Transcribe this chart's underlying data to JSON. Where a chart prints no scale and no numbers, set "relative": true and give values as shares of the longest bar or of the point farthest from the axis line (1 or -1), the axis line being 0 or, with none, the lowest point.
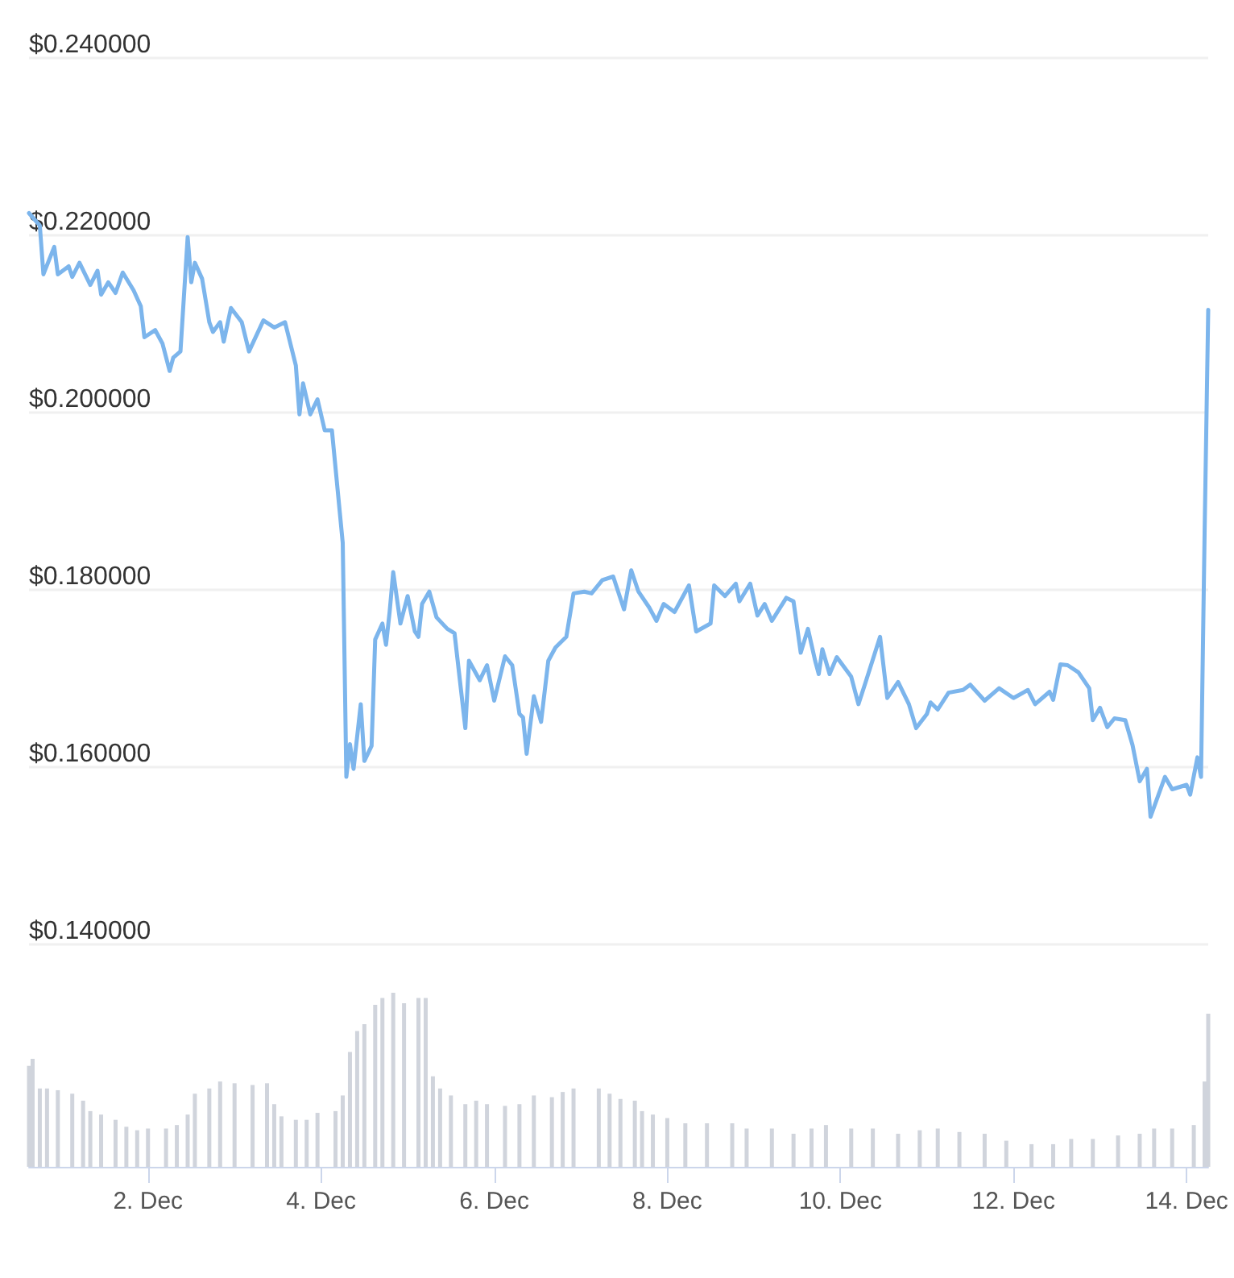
{
  "chart_data": [
    {
      "type": "line",
      "tick_labels": "y",
      "grid": "y",
      "marker": "none",
      "line_style": "solid",
      "xlim": [
        "--11-30T15:00",
        "--12-14T06:00"
      ],
      "xticks": [
        {
          "value": "--12-02",
          "label": null
        },
        {
          "value": "--12-04",
          "label": null
        },
        {
          "value": "--12-06",
          "label": null
        },
        {
          "value": "--12-08",
          "label": null
        },
        {
          "value": "--12-10",
          "label": null
        },
        {
          "value": "--12-12",
          "label": null
        },
        {
          "value": "--12-14",
          "label": null
        }
      ],
      "ylim": [
        0.14,
        0.24
      ],
      "yticks": [
        {
          "value": 0.14,
          "label": "$0.140000"
        },
        {
          "value": 0.16,
          "label": "$0.160000"
        },
        {
          "value": 0.18,
          "label": "$0.180000"
        },
        {
          "value": 0.2,
          "label": "$0.200000"
        },
        {
          "value": 0.22,
          "label": "$0.220000"
        },
        {
          "value": 0.24,
          "label": "$0.240000"
        }
      ],
      "x": [
        "--11-30T15:00",
        "--11-30T18:00",
        "--11-30T19:00",
        "--11-30T22:00",
        "--11-30T23:00",
        "--12-01T02:00",
        "--12-01T03:00",
        "--12-01T05:00",
        "--12-01T08:00",
        "--12-01T10:00",
        "--12-01T11:00",
        "--12-01T13:00",
        "--12-01T15:00",
        "--12-01T17:00",
        "--12-01T20:00",
        "--12-01T22:00",
        "--12-01T23:00",
        "--12-02T02:00",
        "--12-02T04:00",
        "--12-02T06:00",
        "--12-02T07:00",
        "--12-02T09:00",
        "--12-02T11:00",
        "--12-02T12:00",
        "--12-02T13:00",
        "--12-02T15:00",
        "--12-02T17:00",
        "--12-02T18:00",
        "--12-02T20:00",
        "--12-02T21:00",
        "--12-02T23:00",
        "--12-03T02:00",
        "--12-03T04:00",
        "--12-03T08:00",
        "--12-03T11:00",
        "--12-03T14:00",
        "--12-03T17:00",
        "--12-03T18:00",
        "--12-03T19:00",
        "--12-03T21:00",
        "--12-03T23:00",
        "--12-04T01:00",
        "--12-04T03:00",
        "--12-04T06:00",
        "--12-04T07:00",
        "--12-04T08:00",
        "--12-04T09:00",
        "--12-04T11:00",
        "--12-04T12:00",
        "--12-04T14:00",
        "--12-04T15:00",
        "--12-04T17:00",
        "--12-04T18:00",
        "--12-04T19:00",
        "--12-04T20:00",
        "--12-04T22:00",
        "--12-05T00:00",
        "--12-05T02:00",
        "--12-05T03:00",
        "--12-05T04:00",
        "--12-05T06:00",
        "--12-05T08:00",
        "--12-05T11:00",
        "--12-05T13:00",
        "--12-05T16:00",
        "--12-05T17:00",
        "--12-05T20:00",
        "--12-05T22:00",
        "--12-06T00:00",
        "--12-06T03:00",
        "--12-06T05:00",
        "--12-06T07:00",
        "--12-06T08:00",
        "--12-06T09:00",
        "--12-06T11:00",
        "--12-06T13:00",
        "--12-06T15:00",
        "--12-06T17:00",
        "--12-06T20:00",
        "--12-06T22:00",
        "--12-07T01:00",
        "--12-07T03:00",
        "--12-07T06:00",
        "--12-07T09:00",
        "--12-07T12:00",
        "--12-07T14:00",
        "--12-07T16:00",
        "--12-07T19:00",
        "--12-07T21:00",
        "--12-07T23:00",
        "--12-08T02:00",
        "--12-08T06:00",
        "--12-08T08:00",
        "--12-08T12:00",
        "--12-08T13:00",
        "--12-08T16:00",
        "--12-08T19:00",
        "--12-08T20:00",
        "--12-08T23:00",
        "--12-09T01:00",
        "--12-09T03:00",
        "--12-09T05:00",
        "--12-09T09:00",
        "--12-09T11:00",
        "--12-09T13:00",
        "--12-09T15:00",
        "--12-09T17:00",
        "--12-09T18:00",
        "--12-09T19:00",
        "--12-09T21:00",
        "--12-09T23:00",
        "--12-10T03:00",
        "--12-10T05:00",
        "--12-10T07:00",
        "--12-10T11:00",
        "--12-10T13:00",
        "--12-10T16:00",
        "--12-10T19:00",
        "--12-10T21:00",
        "--12-11T00:00",
        "--12-11T01:00",
        "--12-11T03:00",
        "--12-11T06:00",
        "--12-11T10:00",
        "--12-11T12:00",
        "--12-11T16:00",
        "--12-11T20:00",
        "--12-12T00:00",
        "--12-12T04:00",
        "--12-12T06:00",
        "--12-12T10:00",
        "--12-12T11:00",
        "--12-12T13:00",
        "--12-12T15:00",
        "--12-12T18:00",
        "--12-12T21:00",
        "--12-12T22:00",
        "--12-13T00:00",
        "--12-13T02:00",
        "--12-13T04:00",
        "--12-13T07:00",
        "--12-13T09:00",
        "--12-13T11:00",
        "--12-13T13:00",
        "--12-13T14:00",
        "--12-13T18:00",
        "--12-13T20:00",
        "--12-14T00:00",
        "--12-14T01:00",
        "--12-14T03:00",
        "--12-14T04:00",
        "--12-14T05:00",
        "--12-14T06:00"
      ],
      "series": [
        {
          "color": "#7cb5ec",
          "values": [
            0.2225,
            0.2211,
            0.2156,
            0.2187,
            0.2156,
            0.2165,
            0.2153,
            0.2169,
            0.2144,
            0.216,
            0.2133,
            0.2147,
            0.2135,
            0.2158,
            0.2138,
            0.212,
            0.2085,
            0.2093,
            0.2078,
            0.2047,
            0.2062,
            0.2069,
            0.2198,
            0.2147,
            0.2169,
            0.2151,
            0.2102,
            0.2091,
            0.2102,
            0.208,
            0.2118,
            0.2102,
            0.2069,
            0.2104,
            0.2096,
            0.2102,
            0.2053,
            0.1998,
            0.2033,
            0.1998,
            0.2015,
            0.198,
            0.198,
            0.1853,
            0.1589,
            0.1626,
            0.1598,
            0.1671,
            0.1607,
            0.1624,
            0.1744,
            0.1762,
            0.1738,
            0.1775,
            0.182,
            0.1762,
            0.1793,
            0.1753,
            0.1747,
            0.1784,
            0.1798,
            0.1769,
            0.1756,
            0.1751,
            0.1644,
            0.172,
            0.1698,
            0.1715,
            0.1675,
            0.1725,
            0.1715,
            0.166,
            0.1656,
            0.1615,
            0.168,
            0.1651,
            0.172,
            0.1735,
            0.1747,
            0.1796,
            0.1798,
            0.1796,
            0.1811,
            0.1815,
            0.1778,
            0.1822,
            0.1798,
            0.178,
            0.1765,
            0.1784,
            0.1775,
            0.1805,
            0.1753,
            0.1762,
            0.1805,
            0.1793,
            0.1807,
            0.1787,
            0.1807,
            0.1771,
            0.1784,
            0.1765,
            0.1791,
            0.1787,
            0.1729,
            0.1756,
            0.172,
            0.1705,
            0.1733,
            0.1705,
            0.1724,
            0.1702,
            0.1671,
            0.1696,
            0.1747,
            0.1678,
            0.1696,
            0.1671,
            0.1644,
            0.166,
            0.1673,
            0.1665,
            0.1684,
            0.1687,
            0.1693,
            0.1675,
            0.1689,
            0.1678,
            0.1687,
            0.1671,
            0.1685,
            0.1676,
            0.1716,
            0.1715,
            0.1707,
            0.1689,
            0.1653,
            0.1667,
            0.1645,
            0.1655,
            0.1653,
            0.1625,
            0.1584,
            0.1598,
            0.1544,
            0.1589,
            0.1575,
            0.158,
            0.1569,
            0.1611,
            0.1589,
            0.1865,
            0.2116
          ]
        }
      ]
    },
    {
      "type": "bar",
      "relative": true,
      "tick_labels": "x",
      "xlim": [
        "--11-30T15:00",
        "--12-14T06:00"
      ],
      "xticks": [
        {
          "value": "--12-02",
          "label": "2. Dec"
        },
        {
          "value": "--12-04",
          "label": "4. Dec"
        },
        {
          "value": "--12-06",
          "label": "6. Dec"
        },
        {
          "value": "--12-08",
          "label": "8. Dec"
        },
        {
          "value": "--12-10",
          "label": "10. Dec"
        },
        {
          "value": "--12-12",
          "label": "12. Dec"
        },
        {
          "value": "--12-14",
          "label": "14. Dec"
        }
      ],
      "x": [
        "--11-30T15:00",
        "--11-30T16:00",
        "--11-30T18:00",
        "--11-30T20:00",
        "--11-30T23:00",
        "--12-01T03:00",
        "--12-01T06:00",
        "--12-01T08:00",
        "--12-01T11:00",
        "--12-01T15:00",
        "--12-01T18:00",
        "--12-01T21:00",
        "--12-02T00:00",
        "--12-02T05:00",
        "--12-02T08:00",
        "--12-02T11:00",
        "--12-02T13:00",
        "--12-02T17:00",
        "--12-02T20:00",
        "--12-03T00:00",
        "--12-03T05:00",
        "--12-03T09:00",
        "--12-03T11:00",
        "--12-03T13:00",
        "--12-03T17:00",
        "--12-03T20:00",
        "--12-03T23:00",
        "--12-04T04:00",
        "--12-04T06:00",
        "--12-04T08:00",
        "--12-04T10:00",
        "--12-04T12:00",
        "--12-04T15:00",
        "--12-04T17:00",
        "--12-04T20:00",
        "--12-04T23:00",
        "--12-05T03:00",
        "--12-05T05:00",
        "--12-05T07:00",
        "--12-05T09:00",
        "--12-05T12:00",
        "--12-05T16:00",
        "--12-05T19:00",
        "--12-05T22:00",
        "--12-06T03:00",
        "--12-06T07:00",
        "--12-06T11:00",
        "--12-06T16:00",
        "--12-06T19:00",
        "--12-06T22:00",
        "--12-07T05:00",
        "--12-07T08:00",
        "--12-07T11:00",
        "--12-07T15:00",
        "--12-07T17:00",
        "--12-07T20:00",
        "--12-08T00:00",
        "--12-08T05:00",
        "--12-08T11:00",
        "--12-08T18:00",
        "--12-08T22:00",
        "--12-09T05:00",
        "--12-09T11:00",
        "--12-09T16:00",
        "--12-09T20:00",
        "--12-10T03:00",
        "--12-10T09:00",
        "--12-10T16:00",
        "--12-10T22:00",
        "--12-11T03:00",
        "--12-11T09:00",
        "--12-11T16:00",
        "--12-11T22:00",
        "--12-12T05:00",
        "--12-12T11:00",
        "--12-12T16:00",
        "--12-12T22:00",
        "--12-13T05:00",
        "--12-13T11:00",
        "--12-13T15:00",
        "--12-13T20:00",
        "--12-14T02:00",
        "--12-14T05:00",
        "--12-14T06:00"
      ],
      "series": [
        {
          "color": "#d0d4dc",
          "values": [
            0.58,
            0.62,
            0.45,
            0.45,
            0.44,
            0.42,
            0.38,
            0.32,
            0.3,
            0.27,
            0.23,
            0.21,
            0.22,
            0.22,
            0.24,
            0.3,
            0.42,
            0.45,
            0.49,
            0.48,
            0.47,
            0.48,
            0.36,
            0.29,
            0.27,
            0.27,
            0.31,
            0.32,
            0.41,
            0.66,
            0.78,
            0.82,
            0.93,
            0.97,
            1.0,
            0.94,
            0.97,
            0.97,
            0.52,
            0.45,
            0.41,
            0.36,
            0.38,
            0.36,
            0.35,
            0.36,
            0.41,
            0.4,
            0.43,
            0.45,
            0.45,
            0.42,
            0.39,
            0.38,
            0.32,
            0.3,
            0.28,
            0.25,
            0.25,
            0.25,
            0.22,
            0.22,
            0.19,
            0.22,
            0.24,
            0.22,
            0.22,
            0.19,
            0.21,
            0.22,
            0.2,
            0.19,
            0.15,
            0.13,
            0.13,
            0.16,
            0.16,
            0.18,
            0.19,
            0.22,
            0.22,
            0.24,
            0.49,
            0.88
          ]
        }
      ]
    }
  ]
}
